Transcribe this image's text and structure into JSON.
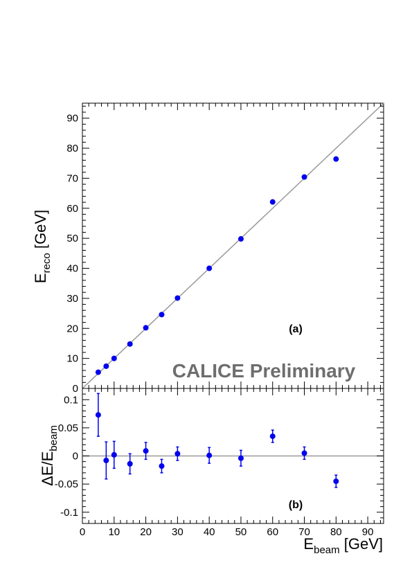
{
  "chart_data": [
    {
      "type": "scatter",
      "panel_label": "(a)",
      "watermark": "CALICE Preliminary",
      "ylabel": {
        "main": "E",
        "sub": "reco",
        "unit": " [GeV]"
      },
      "xlim": [
        0,
        95
      ],
      "ylim": [
        0,
        95
      ],
      "x_ticks": [
        0,
        10,
        20,
        30,
        40,
        50,
        60,
        70,
        80,
        90
      ],
      "y_ticks": [
        0,
        10,
        20,
        30,
        40,
        50,
        60,
        70,
        80,
        90
      ],
      "x_tick_labels_shown": false,
      "reference_line": {
        "slope": 1,
        "intercept": 0,
        "color": "#999999"
      },
      "marker_color": "#0000ee",
      "series": [
        {
          "points": [
            {
              "x": 5,
              "y": 5.4
            },
            {
              "x": 7.5,
              "y": 7.4
            },
            {
              "x": 10,
              "y": 10.0
            },
            {
              "x": 15,
              "y": 14.8
            },
            {
              "x": 20,
              "y": 20.2
            },
            {
              "x": 25,
              "y": 24.6
            },
            {
              "x": 30,
              "y": 30.1
            },
            {
              "x": 40,
              "y": 40.0
            },
            {
              "x": 50,
              "y": 49.8
            },
            {
              "x": 60,
              "y": 62.1
            },
            {
              "x": 70,
              "y": 70.4
            },
            {
              "x": 80,
              "y": 76.4
            }
          ]
        }
      ]
    },
    {
      "type": "scatter",
      "panel_label": "(b)",
      "ylabel": {
        "main": "ΔE/E",
        "sub": "beam",
        "unit": ""
      },
      "xlabel": {
        "main": "E",
        "sub": "beam",
        "unit": " [GeV]"
      },
      "xlim": [
        0,
        95
      ],
      "ylim": [
        -0.12,
        0.12
      ],
      "x_ticks": [
        0,
        10,
        20,
        30,
        40,
        50,
        60,
        70,
        80,
        90
      ],
      "x_tick_labels": [
        "0",
        "10",
        "20",
        "30",
        "40",
        "50",
        "60",
        "70",
        "80",
        "90"
      ],
      "y_ticks": [
        -0.1,
        -0.05,
        0,
        0.05,
        0.1
      ],
      "y_tick_labels": [
        "-0.1",
        "-0.05",
        "0",
        "0.05",
        "0.1"
      ],
      "reference_line": {
        "y": 0,
        "color": "#999999"
      },
      "marker_color": "#0000ee",
      "series": [
        {
          "points": [
            {
              "x": 5,
              "y": 0.073,
              "err": 0.038
            },
            {
              "x": 7.5,
              "y": -0.008,
              "err": 0.033
            },
            {
              "x": 10,
              "y": 0.002,
              "err": 0.024
            },
            {
              "x": 15,
              "y": -0.014,
              "err": 0.018
            },
            {
              "x": 20,
              "y": 0.009,
              "err": 0.015
            },
            {
              "x": 25,
              "y": -0.018,
              "err": 0.012
            },
            {
              "x": 30,
              "y": 0.004,
              "err": 0.012
            },
            {
              "x": 40,
              "y": 0.001,
              "err": 0.014
            },
            {
              "x": 50,
              "y": -0.004,
              "err": 0.014
            },
            {
              "x": 60,
              "y": 0.035,
              "err": 0.011
            },
            {
              "x": 70,
              "y": 0.005,
              "err": 0.011
            },
            {
              "x": 80,
              "y": -0.045,
              "err": 0.011
            }
          ]
        }
      ]
    }
  ]
}
